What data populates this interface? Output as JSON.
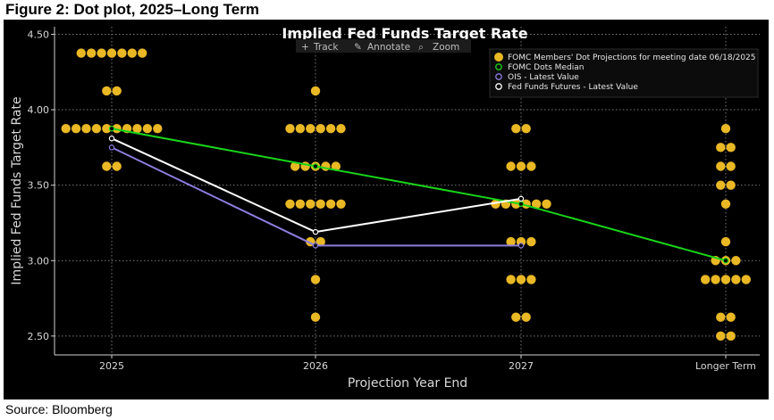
{
  "figure_title": "Figure 2: Dot plot, 2025–Long Term",
  "source": "Source: Bloomberg",
  "toolbar": {
    "track": "Track",
    "annotate": "Annotate",
    "zoom": "Zoom"
  },
  "chart_data": {
    "type": "scatter",
    "title": "Implied Fed Funds Target Rate",
    "xlabel": "Projection Year End",
    "ylabel": "Implied Fed Funds Target Rate",
    "categories": [
      "2025",
      "2026",
      "2027",
      "Longer Term"
    ],
    "ylim": [
      2.375,
      4.55
    ],
    "yticks": [
      "2.50",
      "3.00",
      "3.50",
      "4.00",
      "4.50"
    ],
    "grid": true,
    "legend_position": "top-right",
    "dot_rows": [
      {
        "category": "2025",
        "rate": 4.375,
        "count": 7
      },
      {
        "category": "2025",
        "rate": 4.125,
        "count": 2
      },
      {
        "category": "2025",
        "rate": 3.875,
        "count": 10
      },
      {
        "category": "2025",
        "rate": 3.625,
        "count": 2
      },
      {
        "category": "2026",
        "rate": 4.125,
        "count": 1
      },
      {
        "category": "2026",
        "rate": 3.875,
        "count": 6
      },
      {
        "category": "2026",
        "rate": 3.625,
        "count": 5
      },
      {
        "category": "2026",
        "rate": 3.375,
        "count": 6
      },
      {
        "category": "2026",
        "rate": 3.125,
        "count": 2
      },
      {
        "category": "2026",
        "rate": 2.875,
        "count": 1
      },
      {
        "category": "2026",
        "rate": 2.625,
        "count": 1
      },
      {
        "category": "2027",
        "rate": 3.875,
        "count": 2
      },
      {
        "category": "2027",
        "rate": 3.625,
        "count": 3
      },
      {
        "category": "2027",
        "rate": 3.375,
        "count": 6
      },
      {
        "category": "2027",
        "rate": 3.125,
        "count": 3
      },
      {
        "category": "2027",
        "rate": 2.875,
        "count": 3
      },
      {
        "category": "2027",
        "rate": 2.625,
        "count": 2
      },
      {
        "category": "Longer Term",
        "rate": 3.875,
        "count": 1
      },
      {
        "category": "Longer Term",
        "rate": 3.75,
        "count": 2
      },
      {
        "category": "Longer Term",
        "rate": 3.625,
        "count": 2
      },
      {
        "category": "Longer Term",
        "rate": 3.5,
        "count": 2
      },
      {
        "category": "Longer Term",
        "rate": 3.375,
        "count": 1
      },
      {
        "category": "Longer Term",
        "rate": 3.125,
        "count": 1
      },
      {
        "category": "Longer Term",
        "rate": 3.0,
        "count": 3
      },
      {
        "category": "Longer Term",
        "rate": 2.875,
        "count": 5
      },
      {
        "category": "Longer Term",
        "rate": 2.625,
        "count": 2
      },
      {
        "category": "Longer Term",
        "rate": 2.5,
        "count": 2
      }
    ],
    "series": [
      {
        "name": "FOMC Members' Dot Projections for meeting date 06/18/2025",
        "kind": "dots",
        "color": "#e9b824"
      },
      {
        "name": "FOMC Dots Median",
        "kind": "line",
        "color": "#19d419",
        "values": [
          3.875,
          3.625,
          3.375,
          3.0
        ]
      },
      {
        "name": "OIS - Latest Value",
        "kind": "line",
        "color": "#8d7ee0",
        "values": [
          3.75,
          3.1,
          3.1,
          null
        ]
      },
      {
        "name": "Fed Funds Futures - Latest Value",
        "kind": "line",
        "color": "#ffffff",
        "values": [
          3.81,
          3.19,
          3.41,
          null
        ]
      }
    ]
  }
}
